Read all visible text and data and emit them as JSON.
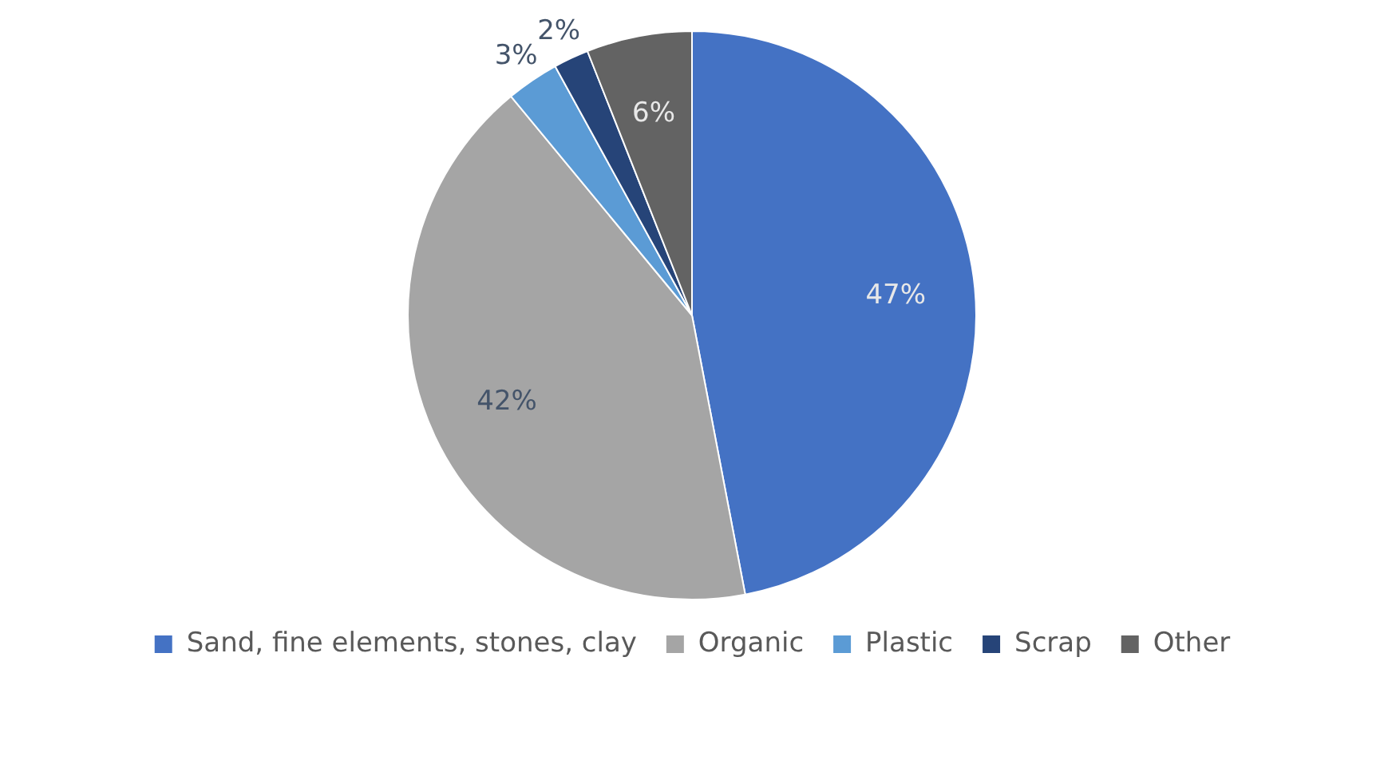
{
  "chart_data": {
    "type": "pie",
    "categories": [
      "Sand, fine elements, stones, clay",
      "Organic",
      "Plastic",
      "Scrap",
      "Other"
    ],
    "values": [
      47,
      42,
      3,
      2,
      6
    ],
    "colors": [
      "#4472c4",
      "#a5a5a5",
      "#5b9bd5",
      "#264478",
      "#636363"
    ],
    "value_labels": [
      "47%",
      "42%",
      "3%",
      "2%",
      "6%"
    ],
    "legend": "bottom"
  }
}
